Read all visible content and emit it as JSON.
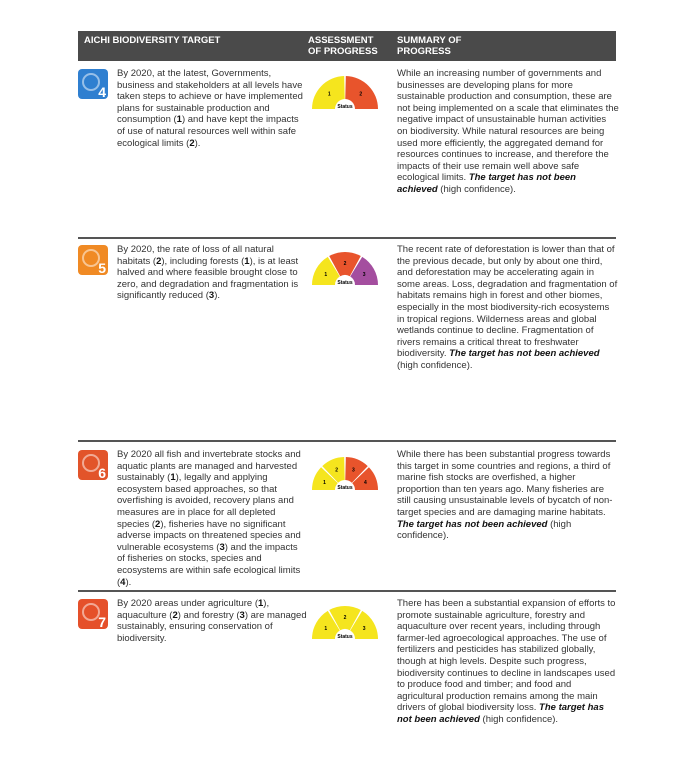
{
  "header": {
    "col1": "AICHI BIODIVERSITY TARGET",
    "col2": "ASSESSMENT OF PROGRESS",
    "col3": "SUMMARY OF PROGRESS"
  },
  "colors": {
    "yellow": "#f5e51e",
    "red": "#e8542c",
    "purple": "#a44e9f"
  },
  "rows": [
    {
      "number": "4",
      "icon": "tree-cycle-icon",
      "icon_color": "#2f7fd0",
      "target": [
        "By 2020, at the latest, Governments, business and stakeholders at all levels have taken steps to achieve or have implemented plans for sustainable production and consumption (",
        "1",
        ") and have kept the impacts of use of natural resources well within safe ecological limits (",
        "2",
        ")."
      ],
      "gauge_label": "Status",
      "segments": [
        {
          "label": "1",
          "color": "yellow"
        },
        {
          "label": "2",
          "color": "red"
        }
      ],
      "summary": "While an increasing number of governments and businesses are developing plans for more sustainable production and consumption, these are not being implemented on a scale that eliminates the negative impact of unsustainable human activities on biodiversity. While natural resources are being used more efficiently, the aggregated demand for resources continues to increase, and therefore the impacts of their use remain well above safe ecological limits. ",
      "verdict": "The target has not been achieved",
      "confidence": " (high confidence)."
    },
    {
      "number": "5",
      "icon": "habitat-loss-icon",
      "icon_color": "#f08a24",
      "target": [
        "By 2020, the rate of loss of all natural habitats (",
        "2",
        "), including forests (",
        "1",
        "), is at least halved and where feasible brought close to zero, and degradation and fragmentation is significantly reduced (",
        "3",
        ")."
      ],
      "gauge_label": "Status",
      "segments": [
        {
          "label": "1",
          "color": "yellow"
        },
        {
          "label": "2",
          "color": "red"
        },
        {
          "label": "3",
          "color": "purple"
        }
      ],
      "summary": "The recent rate of deforestation is lower than that of the previous decade, but only by about one third, and deforestation may be accelerating again in some areas. Loss, degradation and fragmentation of habitats remains high in forest and other biomes, especially in the most biodiversity-rich ecosystems in tropical regions. Wilderness areas and global wetlands continue to decline. Fragmentation of rivers remains a critical threat to freshwater biodiversity. ",
      "verdict": "The target has not been achieved",
      "confidence": " (high confidence)."
    },
    {
      "number": "6",
      "icon": "fish-icon",
      "icon_color": "#e2542a",
      "target": [
        "By 2020 all fish and invertebrate stocks and aquatic plants are managed and harvested sustainably (",
        "1",
        "), legally and applying ecosystem based approaches, so that overfishing is avoided, recovery plans and measures are in place for all depleted species (",
        "2",
        "), fisheries have no significant adverse impacts on threatened species and vulnerable ecosystems (",
        "3",
        ") and the impacts of fisheries on stocks, species and ecosystems are within safe ecological limits (",
        "4",
        ")."
      ],
      "gauge_label": "Status",
      "segments": [
        {
          "label": "1",
          "color": "yellow"
        },
        {
          "label": "2",
          "color": "yellow"
        },
        {
          "label": "3",
          "color": "red"
        },
        {
          "label": "4",
          "color": "red"
        }
      ],
      "summary": "While there has been substantial progress towards this target in some countries and regions, a third of marine fish stocks are overfished, a higher proportion than ten years ago. Many fisheries are still causing unsustainable levels of bycatch of non-target species and are damaging marine habitats. ",
      "verdict": "The target has not been achieved",
      "confidence": " (high confidence)."
    },
    {
      "number": "7",
      "icon": "agriculture-check-icon",
      "icon_color": "#e5502a",
      "target": [
        "By 2020 areas under agriculture (",
        "1",
        "), aquaculture (",
        "2",
        ") and forestry (",
        "3",
        ") are managed sustainably, ensuring conservation of biodiversity."
      ],
      "gauge_label": "Status",
      "segments": [
        {
          "label": "1",
          "color": "yellow"
        },
        {
          "label": "2",
          "color": "yellow"
        },
        {
          "label": "3",
          "color": "yellow"
        }
      ],
      "summary": "There has been a substantial expansion of efforts to promote sustainable agriculture, forestry and aquaculture over recent years, including through farmer-led agroecological approaches. The use of fertilizers and pesticides has stabilized globally, though at high levels. Despite such progress, biodiversity continues to decline in landscapes used to produce food and timber; and food and agricultural production remains among the main drivers of global biodiversity loss. ",
      "verdict": "The target has not been achieved",
      "confidence": " (high confidence)."
    }
  ]
}
